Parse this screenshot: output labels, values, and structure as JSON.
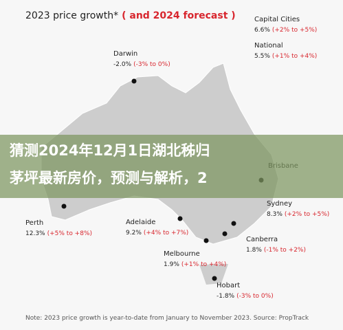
{
  "header": {
    "title": "2023 price growth*",
    "subtitle": "( and 2024 forecast )"
  },
  "summary": [
    {
      "label": "Capital Cities",
      "growth": "6.6%",
      "forecast": "(+2% to +5%)"
    },
    {
      "label": "National",
      "growth": "5.5%",
      "forecast": "(+1% to +4%)"
    }
  ],
  "cities": [
    {
      "label": "Darwin",
      "growth": "-2.0%",
      "forecast": "(-3% to 0%)"
    },
    {
      "label": "Brisbane"
    },
    {
      "label": "Perth",
      "growth": "12.3%",
      "forecast": "(+5% to +8%)"
    },
    {
      "label": "Adelaide",
      "growth": "9.2%",
      "forecast": "(+4% to +7%)"
    },
    {
      "label": "Sydney",
      "growth": "8.3%",
      "forecast": "(+2% to +5%)"
    },
    {
      "label": "Canberra",
      "growth": "1.8%",
      "forecast": "(-1% to +2%)"
    },
    {
      "label": "Melbourne",
      "growth": "1.9%",
      "forecast": "(+1% to +4%)"
    },
    {
      "label": "Hobart",
      "growth": "-1.8%",
      "forecast": "(-3% to 0%)"
    }
  ],
  "note": "Note: 2023 price growth is year-to-date from January to November 2023. Source: PropTrack",
  "banner": {
    "lines": [
      "猜测2024年12月1日湖北秭归",
      "茅坪最新房价，预测与解析，2"
    ]
  }
}
